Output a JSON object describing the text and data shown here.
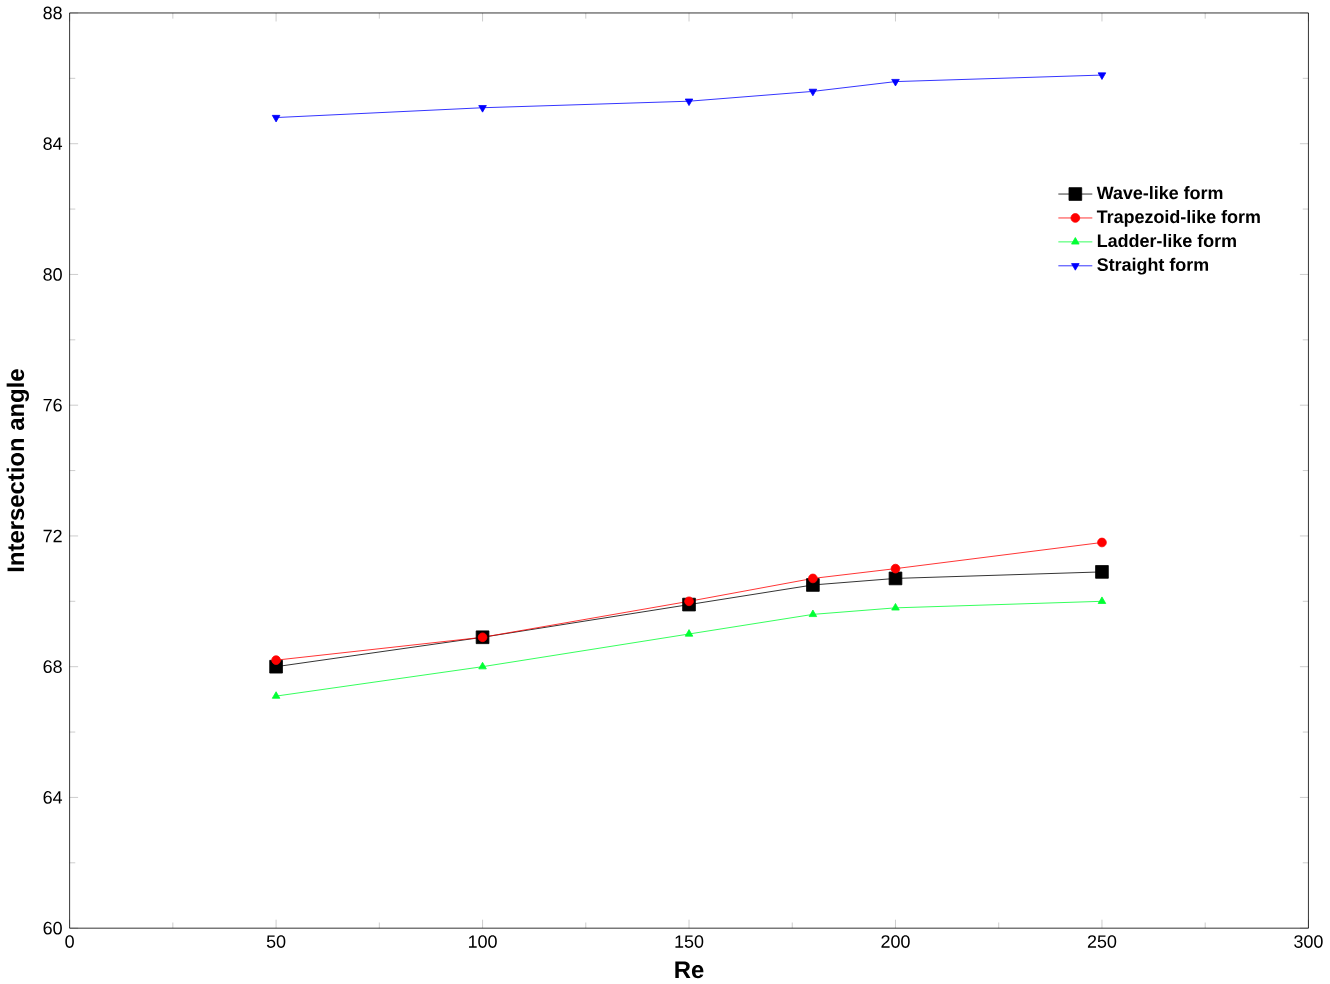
{
  "chart_data": {
    "type": "line",
    "xlabel": "Re",
    "ylabel": "Intersection angle",
    "x": [
      50,
      100,
      150,
      180,
      200,
      250
    ],
    "xlim": [
      0,
      300
    ],
    "xticks": [
      0,
      50,
      100,
      150,
      200,
      250,
      300
    ],
    "ylim": [
      60,
      88
    ],
    "yticks": [
      60,
      64,
      68,
      72,
      76,
      80,
      84,
      88
    ],
    "legend": "top right",
    "line_style": "solid",
    "series": [
      {
        "name": "Wave-like form",
        "color": "#000000",
        "marker": "square",
        "values": [
          68.0,
          68.9,
          69.9,
          70.5,
          70.7,
          70.9
        ]
      },
      {
        "name": "Trapezoid-like form",
        "color": "#ff0000",
        "marker": "circle",
        "values": [
          68.2,
          68.9,
          70.0,
          70.7,
          71.0,
          71.8
        ]
      },
      {
        "name": "Ladder-like form",
        "color": "#00ff33",
        "marker": "triangle",
        "values": [
          67.1,
          68.0,
          69.0,
          69.6,
          69.8,
          70.0
        ]
      },
      {
        "name": "Straight form",
        "color": "#0000ff",
        "marker": "triangle down",
        "values": [
          84.8,
          85.1,
          85.3,
          85.6,
          85.9,
          86.1
        ]
      }
    ]
  }
}
